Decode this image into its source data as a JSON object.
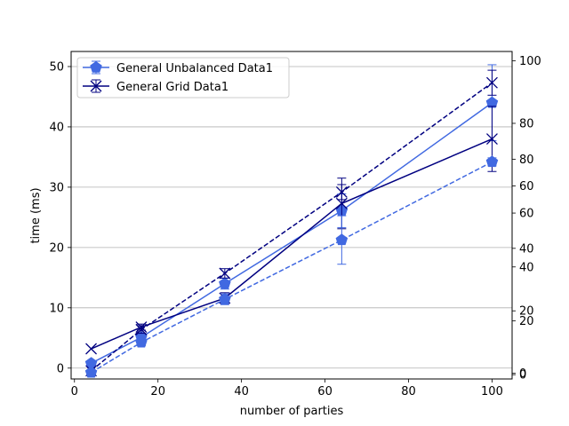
{
  "chart_data": {
    "type": "line",
    "xlabel": "number of parties",
    "ylabel": "time (ms)",
    "xlim": [
      -0.8,
      104.8
    ],
    "ylim": [
      -1.8,
      52.5
    ],
    "x_ticks": [
      "0",
      "20",
      "40",
      "60",
      "80",
      "100"
    ],
    "y_ticks": [
      "0",
      "10",
      "20",
      "30",
      "40",
      "50"
    ],
    "y_grid": true,
    "legend_position": "top-left",
    "legend": [
      "General Unbalanced Data1",
      "General Grid Data1"
    ],
    "twin_axes": [
      {
        "ylim": [
          -1.8,
          103
        ],
        "ticks": [
          "0",
          "20",
          "40",
          "60",
          "80",
          "100"
        ]
      },
      {
        "ylim": [
          -1.6,
          120
        ],
        "ticks": [
          "0",
          "20",
          "40",
          "60",
          "80"
        ]
      }
    ],
    "series": [
      {
        "name": "General Unbalanced Data1",
        "axis": 0,
        "style": "solid",
        "marker": "pentagon",
        "color": "#4169e1",
        "x": [
          4,
          16,
          36,
          64,
          100
        ],
        "y": [
          0.8,
          5.1,
          14.0,
          26.1,
          44.0
        ],
        "err": [
          0,
          0.6,
          0.9,
          2.8,
          6.3
        ]
      },
      {
        "name": "General Grid Data1",
        "axis": 0,
        "style": "solid",
        "marker": "x",
        "color": "#000080",
        "x": [
          4,
          16,
          36,
          64,
          100
        ],
        "y": [
          3.2,
          6.8,
          11.6,
          27.3,
          38.0
        ],
        "err": [
          0,
          0.5,
          0.9,
          4.2,
          5.4
        ]
      },
      {
        "axis": 1,
        "style": "dashed",
        "marker": "x",
        "color": "#000080",
        "x": [
          4,
          16,
          36,
          64,
          100
        ],
        "y": [
          0.8,
          14.0,
          32.0,
          58.0,
          93.0
        ],
        "err": [
          0,
          1.2,
          1.5,
          2.4,
          4.0
        ]
      },
      {
        "axis": 2,
        "style": "dashed",
        "marker": "pentagon",
        "color": "#4169e1",
        "x": [
          4,
          16,
          36,
          64,
          100
        ],
        "y": [
          0.8,
          12.0,
          28.0,
          50.0,
          79.0
        ],
        "err": [
          0,
          1.2,
          2.0,
          9.0,
          1.5
        ]
      }
    ]
  }
}
